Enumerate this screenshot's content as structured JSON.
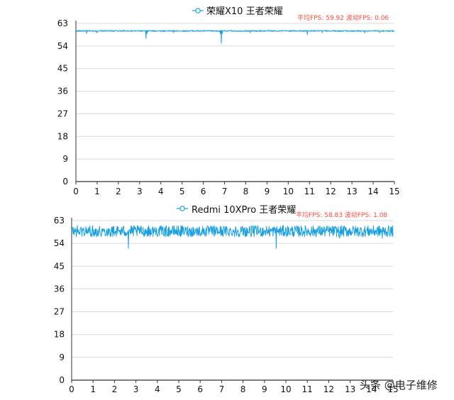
{
  "watermark": "头条 @电子维修",
  "colors": {
    "series": "#1a9fe0",
    "grid": "#d9d9d9",
    "axis": "#333333",
    "stats": "#ff4a3d"
  },
  "chart_data": [
    {
      "type": "line",
      "title": "荣耀X10 王者荣耀",
      "legend_marker": "circle-line",
      "stats": {
        "avg_label": "平均FPS",
        "avg": "59.92",
        "fluct_label": "波动FPS",
        "fluct": "0.06"
      },
      "xlim": [
        0,
        15
      ],
      "ylim": [
        0,
        63
      ],
      "xticks": [
        "0",
        "1",
        "2",
        "3",
        "4",
        "5",
        "6",
        "7",
        "8",
        "9",
        "10",
        "11",
        "12",
        "13",
        "14",
        "15"
      ],
      "yticks": [
        "0",
        "9",
        "18",
        "27",
        "36",
        "45",
        "54",
        "63"
      ],
      "grid": true,
      "baseline": 60,
      "dips": [
        [
          0.5,
          59
        ],
        [
          1.0,
          59.2
        ],
        [
          3.3,
          57
        ],
        [
          3.35,
          59
        ],
        [
          4.6,
          59.3
        ],
        [
          6.8,
          59
        ],
        [
          6.85,
          55
        ],
        [
          6.9,
          59
        ],
        [
          8.2,
          59.3
        ],
        [
          10.9,
          58.5
        ],
        [
          11.6,
          59.3
        ],
        [
          13.6,
          59.2
        ],
        [
          14.3,
          59.3
        ]
      ],
      "noise": 0.25
    },
    {
      "type": "line",
      "title": "Redmi 10XPro 王者荣耀",
      "legend_marker": "circle-line",
      "stats": {
        "avg_label": "平均FPS",
        "avg": "58.83",
        "fluct_label": "波动FPS",
        "fluct": "1.08"
      },
      "xlim": [
        0,
        15
      ],
      "ylim": [
        0,
        63
      ],
      "xticks": [
        "0",
        "1",
        "2",
        "3",
        "4",
        "5",
        "6",
        "7",
        "8",
        "9",
        "10",
        "11",
        "12",
        "13",
        "14",
        "15"
      ],
      "yticks": [
        "0",
        "9",
        "18",
        "27",
        "36",
        "45",
        "54",
        "63"
      ],
      "grid": true,
      "baseline": 58.8,
      "dips": [
        [
          2.65,
          52
        ],
        [
          9.55,
          52
        ],
        [
          12.5,
          56
        ],
        [
          14.5,
          56
        ]
      ],
      "noise": 2.2
    }
  ]
}
